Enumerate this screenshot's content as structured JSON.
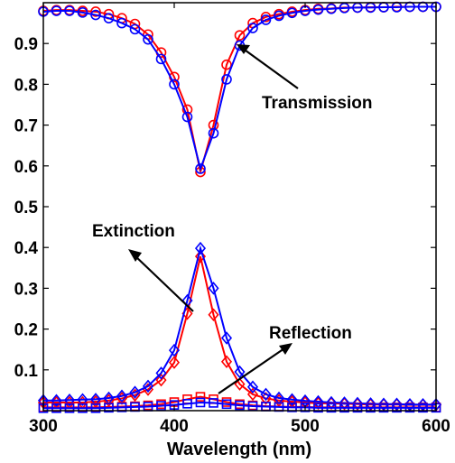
{
  "chart_data": {
    "type": "line",
    "xlabel": "Wavelength (nm)",
    "ylabel": "",
    "xlim": [
      300,
      600
    ],
    "ylim": [
      0,
      1.0
    ],
    "x_ticks": [
      300,
      400,
      500,
      600
    ],
    "y_ticks": [
      0.1,
      0.2,
      0.3,
      0.4,
      0.5,
      0.6,
      0.7,
      0.8,
      0.9
    ],
    "grid": false,
    "x": [
      300,
      310,
      320,
      330,
      340,
      350,
      360,
      370,
      380,
      390,
      400,
      410,
      420,
      430,
      440,
      450,
      460,
      470,
      480,
      490,
      500,
      510,
      520,
      530,
      540,
      550,
      560,
      570,
      580,
      590,
      600
    ],
    "series": [
      {
        "group": "Transmission",
        "color": "#ff0000",
        "marker": "circle",
        "values": [
          0.98,
          0.982,
          0.982,
          0.98,
          0.978,
          0.972,
          0.962,
          0.948,
          0.922,
          0.878,
          0.818,
          0.738,
          0.585,
          0.7,
          0.848,
          0.92,
          0.95,
          0.965,
          0.972,
          0.978,
          0.982,
          0.985,
          0.986,
          0.988,
          0.988,
          0.989,
          0.989,
          0.99,
          0.99,
          0.99,
          0.99
        ]
      },
      {
        "group": "Transmission",
        "color": "#0000ff",
        "marker": "circle",
        "values": [
          0.978,
          0.98,
          0.98,
          0.976,
          0.97,
          0.962,
          0.95,
          0.935,
          0.91,
          0.862,
          0.8,
          0.72,
          0.593,
          0.68,
          0.812,
          0.895,
          0.938,
          0.958,
          0.968,
          0.975,
          0.98,
          0.983,
          0.985,
          0.987,
          0.988,
          0.988,
          0.989,
          0.989,
          0.99,
          0.99,
          0.99
        ]
      },
      {
        "group": "Extinction",
        "color": "#ff0000",
        "marker": "diamond",
        "values": [
          0.02,
          0.02,
          0.02,
          0.02,
          0.022,
          0.025,
          0.03,
          0.038,
          0.052,
          0.075,
          0.118,
          0.238,
          0.378,
          0.235,
          0.12,
          0.065,
          0.04,
          0.03,
          0.025,
          0.022,
          0.02,
          0.018,
          0.018,
          0.017,
          0.016,
          0.015,
          0.015,
          0.015,
          0.014,
          0.014,
          0.014
        ]
      },
      {
        "group": "Extinction",
        "color": "#0000ff",
        "marker": "diamond",
        "values": [
          0.025,
          0.025,
          0.026,
          0.027,
          0.028,
          0.031,
          0.036,
          0.045,
          0.06,
          0.092,
          0.148,
          0.27,
          0.398,
          0.3,
          0.178,
          0.095,
          0.058,
          0.04,
          0.031,
          0.027,
          0.024,
          0.022,
          0.02,
          0.019,
          0.018,
          0.017,
          0.016,
          0.016,
          0.015,
          0.015,
          0.015
        ]
      },
      {
        "group": "Reflection",
        "color": "#ff0000",
        "marker": "square",
        "values": [
          0.008,
          0.008,
          0.008,
          0.008,
          0.008,
          0.009,
          0.01,
          0.011,
          0.013,
          0.016,
          0.021,
          0.028,
          0.034,
          0.028,
          0.021,
          0.016,
          0.013,
          0.011,
          0.01,
          0.009,
          0.009,
          0.008,
          0.008,
          0.008,
          0.008,
          0.008,
          0.008,
          0.008,
          0.008,
          0.008,
          0.008
        ]
      },
      {
        "group": "Reflection",
        "color": "#0000ff",
        "marker": "square",
        "values": [
          0.006,
          0.006,
          0.006,
          0.006,
          0.006,
          0.007,
          0.008,
          0.009,
          0.01,
          0.012,
          0.014,
          0.017,
          0.02,
          0.019,
          0.016,
          0.013,
          0.011,
          0.01,
          0.009,
          0.008,
          0.008,
          0.007,
          0.007,
          0.007,
          0.007,
          0.007,
          0.007,
          0.007,
          0.007,
          0.007,
          0.007
        ]
      }
    ],
    "annotations": [
      {
        "text": "Transmission"
      },
      {
        "text": "Extinction"
      },
      {
        "text": "Reflection"
      }
    ]
  }
}
